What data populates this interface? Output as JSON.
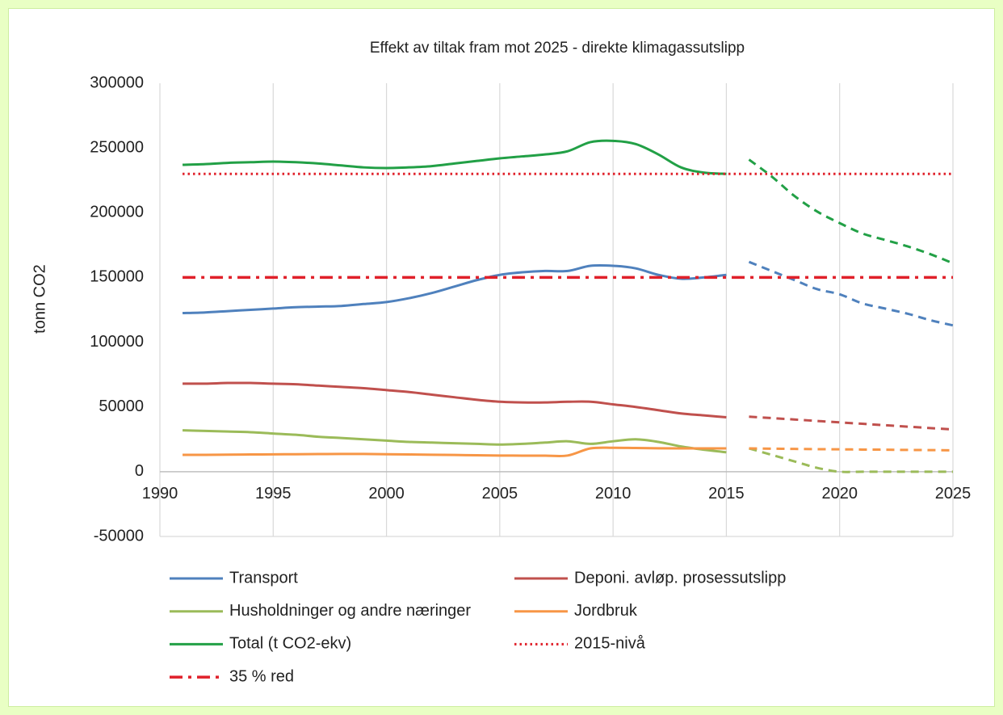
{
  "chart_data": {
    "type": "line",
    "title": "Effekt av tiltak fram mot 2025 - direkte klimagassutslipp",
    "y_label": "tonn CO2",
    "xlim": [
      1990,
      2025
    ],
    "xticks": [
      1990,
      1995,
      2000,
      2005,
      2010,
      2015,
      2020,
      2025
    ],
    "ylim": [
      -50000,
      300000
    ],
    "yticks": [
      -50000,
      0,
      50000,
      100000,
      150000,
      200000,
      250000,
      300000
    ],
    "grid": "x",
    "legend": "bottom",
    "x": [
      1991,
      1992,
      1993,
      1994,
      1995,
      1996,
      1997,
      1998,
      1999,
      2000,
      2001,
      2002,
      2003,
      2004,
      2005,
      2006,
      2007,
      2008,
      2009,
      2010,
      2011,
      2012,
      2013,
      2014,
      2015,
      2016,
      2017,
      2018,
      2019,
      2020,
      2021,
      2022,
      2023,
      2024,
      2025
    ],
    "series": [
      {
        "name": "Transport",
        "color": "#4f81bd",
        "style": "solid",
        "values": [
          122500,
          123000,
          124000,
          125000,
          126000,
          127000,
          127500,
          128000,
          129500,
          131000,
          134000,
          138000,
          143000,
          148000,
          152000,
          154000,
          155000,
          155000,
          159000,
          159000,
          157000,
          152000,
          149000,
          150000,
          152000,
          null,
          null,
          null,
          null,
          null,
          null,
          null,
          null,
          null,
          null
        ],
        "forecast": [
          null,
          null,
          null,
          null,
          null,
          null,
          null,
          null,
          null,
          null,
          null,
          null,
          null,
          null,
          null,
          null,
          null,
          null,
          null,
          null,
          null,
          null,
          null,
          null,
          null,
          162000,
          155000,
          148000,
          141000,
          137000,
          130000,
          126000,
          122000,
          117000,
          113000
        ]
      },
      {
        "name": "Deponi. avløp. prosessutslipp",
        "color": "#c0504d",
        "style": "solid",
        "values": [
          68000,
          68000,
          68500,
          68500,
          68000,
          67500,
          66500,
          65500,
          64500,
          63000,
          61500,
          59500,
          57500,
          55500,
          54000,
          53500,
          53500,
          54000,
          54000,
          52000,
          50000,
          47500,
          45000,
          43500,
          42000,
          null,
          null,
          null,
          null,
          null,
          null,
          null,
          null,
          null,
          null
        ],
        "forecast": [
          null,
          null,
          null,
          null,
          null,
          null,
          null,
          null,
          null,
          null,
          null,
          null,
          null,
          null,
          null,
          null,
          null,
          null,
          null,
          null,
          null,
          null,
          null,
          null,
          null,
          42500,
          41400,
          40300,
          39200,
          38100,
          37000,
          35900,
          34800,
          33700,
          32600
        ]
      },
      {
        "name": "Husholdninger og andre næringer",
        "color": "#9bbb59",
        "style": "solid",
        "values": [
          32000,
          31500,
          31000,
          30500,
          29500,
          28500,
          27000,
          26000,
          25000,
          24000,
          23000,
          22500,
          22000,
          21500,
          21000,
          21500,
          22500,
          23500,
          21500,
          23500,
          25000,
          23000,
          19500,
          17000,
          15000,
          null,
          null,
          null,
          null,
          null,
          null,
          null,
          null,
          null,
          null
        ],
        "forecast": [
          null,
          null,
          null,
          null,
          null,
          null,
          null,
          null,
          null,
          null,
          null,
          null,
          null,
          null,
          null,
          null,
          null,
          null,
          null,
          null,
          null,
          null,
          null,
          null,
          null,
          18000,
          13000,
          8000,
          3000,
          0,
          0,
          0,
          0,
          0,
          0
        ]
      },
      {
        "name": "Jordbruk",
        "color": "#f79646",
        "style": "solid",
        "values": [
          13000,
          13000,
          13200,
          13300,
          13400,
          13500,
          13600,
          13700,
          13700,
          13500,
          13300,
          13100,
          12900,
          12700,
          12500,
          12400,
          12400,
          12500,
          18000,
          18500,
          18300,
          18100,
          18000,
          18000,
          18000,
          null,
          null,
          null,
          null,
          null,
          null,
          null,
          null,
          null,
          null
        ],
        "forecast": [
          null,
          null,
          null,
          null,
          null,
          null,
          null,
          null,
          null,
          null,
          null,
          null,
          null,
          null,
          null,
          null,
          null,
          null,
          null,
          null,
          null,
          null,
          null,
          null,
          null,
          18000,
          17800,
          17600,
          17400,
          17300,
          17100,
          17000,
          16800,
          16700,
          16500
        ]
      },
      {
        "name": "Total (t CO2-ekv)",
        "color": "#22a046",
        "style": "solid",
        "values": [
          237000,
          237500,
          238500,
          239000,
          239500,
          239000,
          238000,
          236500,
          235000,
          234500,
          235000,
          236000,
          238000,
          240000,
          242000,
          243500,
          245000,
          247500,
          254500,
          255500,
          253000,
          245000,
          235000,
          231000,
          230000,
          null,
          null,
          null,
          null,
          null,
          null,
          null,
          null,
          null,
          null
        ],
        "forecast": [
          null,
          null,
          null,
          null,
          null,
          null,
          null,
          null,
          null,
          null,
          null,
          null,
          null,
          null,
          null,
          null,
          null,
          null,
          null,
          null,
          null,
          null,
          null,
          null,
          null,
          241000,
          228000,
          213000,
          201000,
          192000,
          184000,
          179000,
          174000,
          168000,
          161000
        ]
      },
      {
        "name": "2015-nivå",
        "color": "#e0202a",
        "style": "dotted",
        "values": [
          230000,
          230000,
          230000,
          230000,
          230000,
          230000,
          230000,
          230000,
          230000,
          230000,
          230000,
          230000,
          230000,
          230000,
          230000,
          230000,
          230000,
          230000,
          230000,
          230000,
          230000,
          230000,
          230000,
          230000,
          230000,
          230000,
          230000,
          230000,
          230000,
          230000,
          230000,
          230000,
          230000,
          230000,
          230000
        ]
      },
      {
        "name": "35 % red",
        "color": "#e0202a",
        "style": "dash-dot",
        "values": [
          150000,
          150000,
          150000,
          150000,
          150000,
          150000,
          150000,
          150000,
          150000,
          150000,
          150000,
          150000,
          150000,
          150000,
          150000,
          150000,
          150000,
          150000,
          150000,
          150000,
          150000,
          150000,
          150000,
          150000,
          150000,
          150000,
          150000,
          150000,
          150000,
          150000,
          150000,
          150000,
          150000,
          150000,
          150000
        ]
      }
    ]
  }
}
